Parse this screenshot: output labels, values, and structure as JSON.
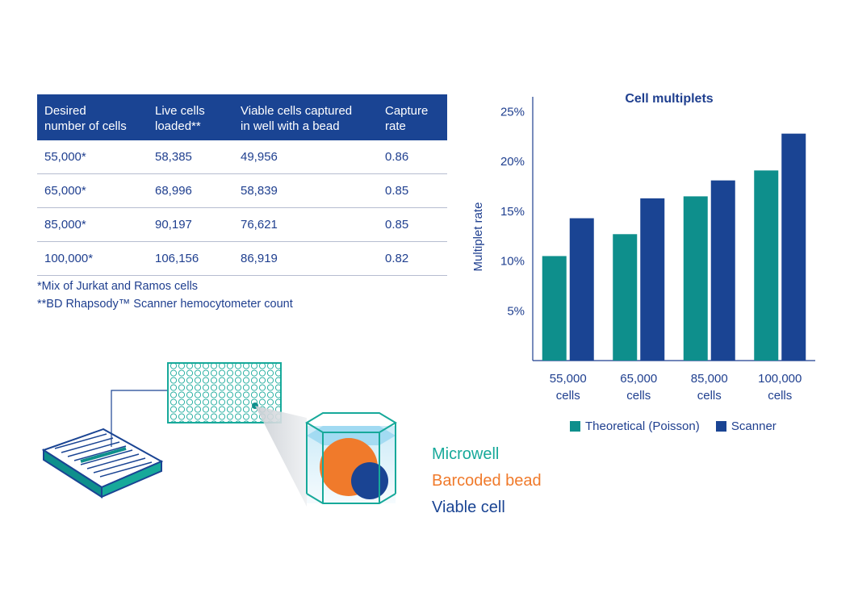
{
  "table": {
    "headers": [
      [
        "Desired",
        "number of cells"
      ],
      [
        "Live cells",
        "loaded**"
      ],
      [
        "Viable cells captured",
        "in well with a bead"
      ],
      [
        "Capture",
        "rate"
      ]
    ],
    "rows": [
      [
        "55,000*",
        "58,385",
        "49,956",
        "0.86"
      ],
      [
        "65,000*",
        "68,996",
        "58,839",
        "0.85"
      ],
      [
        "85,000*",
        "90,197",
        "76,621",
        "0.85"
      ],
      [
        "100,000*",
        "106,156",
        "86,919",
        "0.82"
      ]
    ],
    "footnote1": "*Mix of Jurkat and Ramos cells",
    "footnote2": "**BD Rhapsody™ Scanner hemocytometer count"
  },
  "chart_data": {
    "type": "bar",
    "title": "Cell multiplets",
    "ylabel": "Multiplet rate",
    "xlabel": "",
    "categories": [
      [
        "55,000",
        "cells"
      ],
      [
        "65,000",
        "cells"
      ],
      [
        "85,000",
        "cells"
      ],
      [
        "100,000",
        "cells"
      ]
    ],
    "series": [
      {
        "name": "Theoretical (Poisson)",
        "color": "#0e8f8c",
        "values": [
          10.5,
          12.7,
          16.5,
          19.1
        ]
      },
      {
        "name": "Scanner",
        "color": "#1a4493",
        "values": [
          14.3,
          16.3,
          18.1,
          22.8
        ]
      }
    ],
    "ylim": [
      0,
      26.5
    ],
    "yticks": [
      5,
      10,
      15,
      20,
      25
    ],
    "ytick_labels": [
      "5%",
      "10%",
      "15%",
      "20%",
      "25%"
    ],
    "grid": false,
    "legend": "bottom"
  },
  "illustration": {
    "label_microwell": "Microwell",
    "label_bead": "Barcoded bead",
    "label_cell": "Viable cell",
    "colors": {
      "microwell": "#17a99a",
      "bead": "#f07a2b",
      "cell": "#1a4493"
    }
  }
}
